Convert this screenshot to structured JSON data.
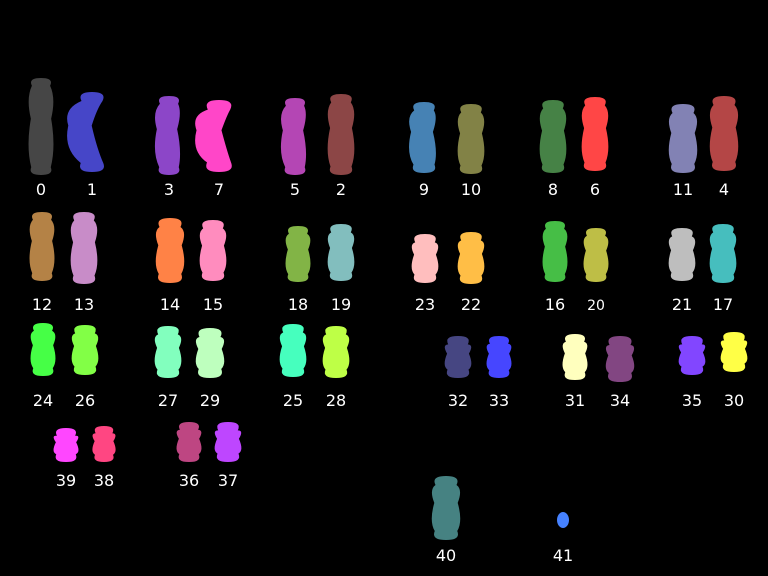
{
  "background": "#000000",
  "label_color": "#ffffff",
  "chromosomes": [
    {
      "label": "0",
      "color": "#464646"
    },
    {
      "label": "1",
      "color": "#4646c8"
    },
    {
      "label": "3",
      "color": "#8c46c8"
    },
    {
      "label": "7",
      "color": "#ff46c8"
    },
    {
      "label": "5",
      "color": "#b446b4"
    },
    {
      "label": "2",
      "color": "#8c4646"
    },
    {
      "label": "9",
      "color": "#4682b4"
    },
    {
      "label": "10",
      "color": "#828246"
    },
    {
      "label": "8",
      "color": "#468246"
    },
    {
      "label": "6",
      "color": "#ff4646"
    },
    {
      "label": "11",
      "color": "#8282b4"
    },
    {
      "label": "4",
      "color": "#b44646"
    },
    {
      "label": "12",
      "color": "#b48246"
    },
    {
      "label": "13",
      "color": "#c88cc8"
    },
    {
      "label": "14",
      "color": "#ff8246"
    },
    {
      "label": "15",
      "color": "#ff8cbe"
    },
    {
      "label": "18",
      "color": "#82b446"
    },
    {
      "label": "19",
      "color": "#82bebe"
    },
    {
      "label": "23",
      "color": "#ffbebe"
    },
    {
      "label": "22",
      "color": "#ffbe46"
    },
    {
      "label": "16",
      "color": "#46be46"
    },
    {
      "label": "20",
      "color": "#bebe46"
    },
    {
      "label": "21",
      "color": "#bebebe"
    },
    {
      "label": "17",
      "color": "#46bebe"
    },
    {
      "label": "24",
      "color": "#46ff46"
    },
    {
      "label": "26",
      "color": "#82ff46"
    },
    {
      "label": "27",
      "color": "#82ffbe"
    },
    {
      "label": "29",
      "color": "#beffbe"
    },
    {
      "label": "25",
      "color": "#46ffbe"
    },
    {
      "label": "28",
      "color": "#beff46"
    },
    {
      "label": "32",
      "color": "#464682"
    },
    {
      "label": "33",
      "color": "#4646ff"
    },
    {
      "label": "31",
      "color": "#ffffbe"
    },
    {
      "label": "34",
      "color": "#824682"
    },
    {
      "label": "35",
      "color": "#8246ff"
    },
    {
      "label": "30",
      "color": "#ffff46"
    },
    {
      "label": "39",
      "color": "#ff46ff"
    },
    {
      "label": "38",
      "color": "#ff4682"
    },
    {
      "label": "36",
      "color": "#be4682"
    },
    {
      "label": "37",
      "color": "#be46ff"
    },
    {
      "label": "40",
      "color": "#468282"
    },
    {
      "label": "41",
      "color": "#4682ff"
    }
  ]
}
